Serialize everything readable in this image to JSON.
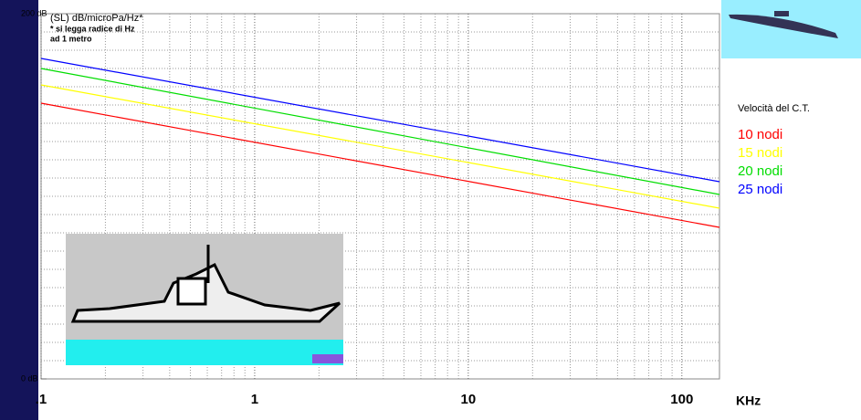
{
  "chart_data": {
    "type": "line",
    "annotations": [
      "(SL) dB/microPa/Hz*",
      "* si legga radice di Hz",
      "ad 1 metro"
    ],
    "x_label": "KHz",
    "legend_title": "Velocità del C.T.",
    "x": [
      0.1,
      150
    ],
    "series": [
      {
        "name": "10 nodi",
        "color": "#ff0000",
        "values": [
          151,
          83
        ]
      },
      {
        "name": "15 nodi",
        "color": "#ffff00",
        "values": [
          161,
          93.5
        ]
      },
      {
        "name": "20 nodi",
        "color": "#00dd00",
        "values": [
          170,
          101
        ]
      },
      {
        "name": "25 nodi",
        "color": "#0000ff",
        "values": [
          175.5,
          108
        ]
      }
    ],
    "xlim": [
      0.1,
      150
    ],
    "log_x": true,
    "xticks": [
      {
        "value": 0.1,
        "label": ".1"
      },
      1,
      10,
      100
    ],
    "ylim": [
      0,
      200
    ],
    "yticks": [
      {
        "value": 0,
        "label": "0 dB"
      },
      {
        "value": 200,
        "label": "200 dB"
      }
    ],
    "grid": true
  }
}
